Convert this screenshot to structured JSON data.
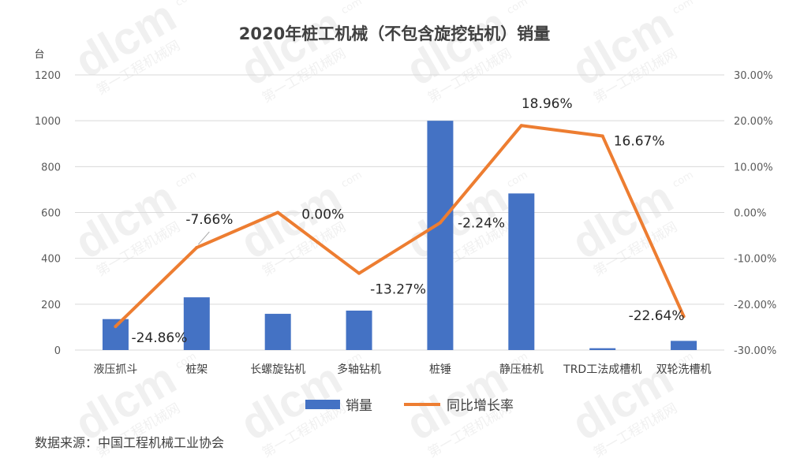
{
  "chart_data": {
    "type": "bar",
    "title": "2020年桩工机械（不包含旋挖钻机）销量",
    "ylabel": "台",
    "categories": [
      "液压抓斗",
      "桩架",
      "长螺旋钻机",
      "多轴钻机",
      "桩锤",
      "静压桩机",
      "TRD工法成槽机",
      "双轮洗槽机"
    ],
    "ylim": [
      0,
      1200
    ],
    "yticks": [
      0,
      200,
      400,
      600,
      800,
      1000,
      1200
    ],
    "y2lim": [
      -30,
      30
    ],
    "y2ticks": [
      -30,
      -20,
      -10,
      0,
      10,
      20,
      30
    ],
    "y2tick_labels": [
      "-30.00%",
      "-20.00%",
      "-10.00%",
      "0.00%",
      "10.00%",
      "20.00%",
      "30.00%"
    ],
    "grid": true,
    "legend_position": "bottom",
    "series": [
      {
        "name": "销量",
        "type": "bar",
        "axis": "left",
        "color": "#4472C4",
        "values": [
          135,
          230,
          158,
          172,
          1000,
          683,
          8,
          40
        ]
      },
      {
        "name": "同比增长率",
        "type": "line",
        "axis": "right",
        "color": "#ED7D31",
        "values": [
          -24.86,
          -7.66,
          0.0,
          -13.27,
          -2.24,
          18.96,
          16.67,
          -22.64
        ],
        "labels": [
          "-24.86%",
          "-7.66%",
          "0.00%",
          "-13.27%",
          "-2.24%",
          "18.96%",
          "16.67%",
          "-22.64%"
        ]
      }
    ]
  },
  "source": "数据来源：中国工程机械工业协会",
  "watermark": {
    "logo": "dlcm",
    "sub": "第一工程机械网",
    "domain": "com"
  }
}
